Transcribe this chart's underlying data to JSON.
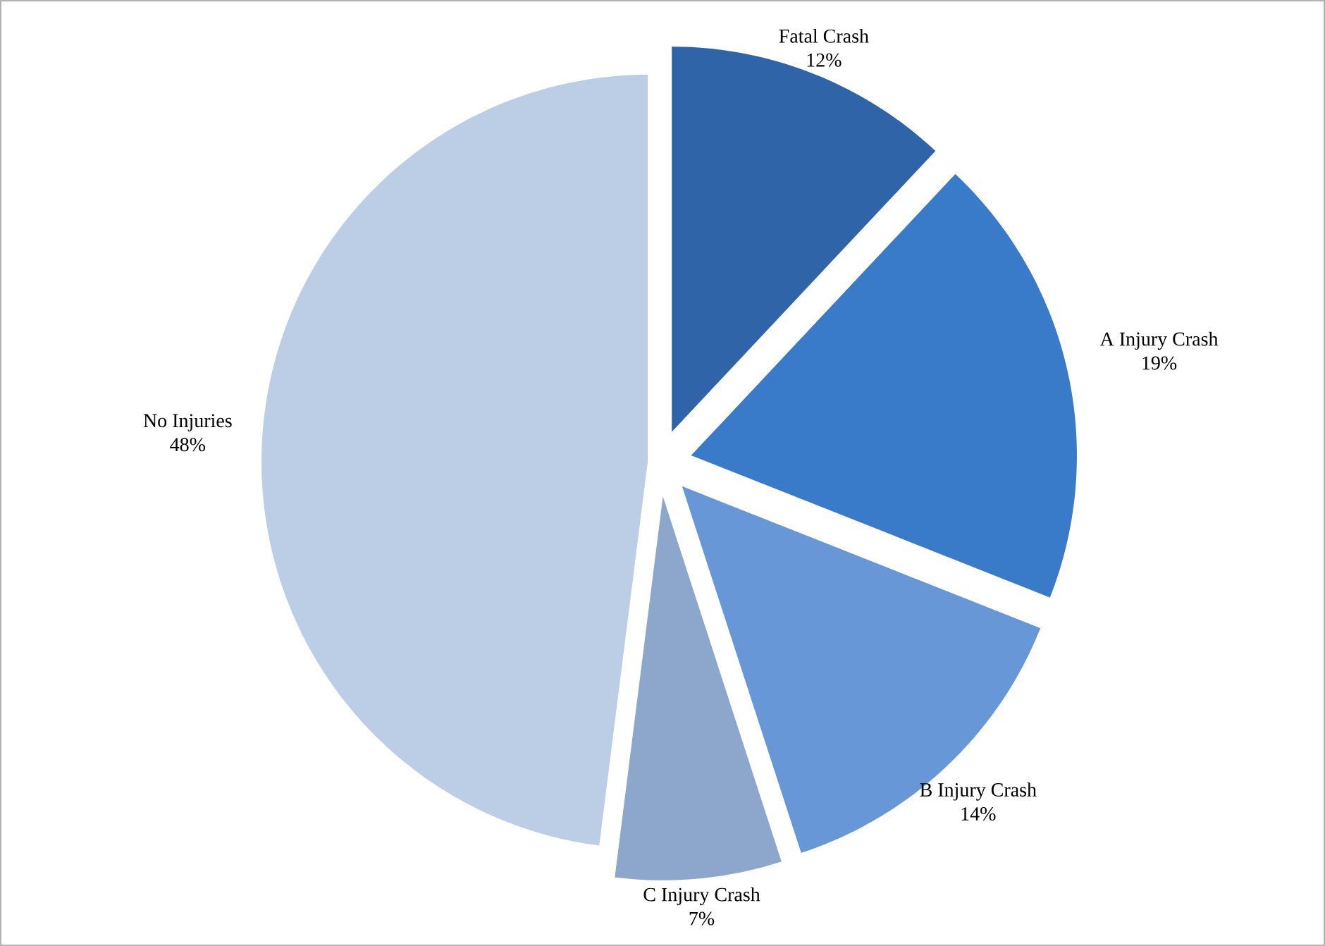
{
  "chart_data": {
    "type": "pie",
    "categories": [
      "Fatal Crash",
      "A Injury Crash",
      "B Injury Crash",
      "C Injury Crash",
      "No Injuries"
    ],
    "values": [
      12,
      19,
      14,
      7,
      48
    ],
    "value_labels": [
      "12%",
      "19%",
      "14%",
      "7%",
      "48%"
    ],
    "colors": [
      "#2f64a8",
      "#3a7bc9",
      "#6797d6",
      "#8ca6cc",
      "#bccde6"
    ]
  }
}
